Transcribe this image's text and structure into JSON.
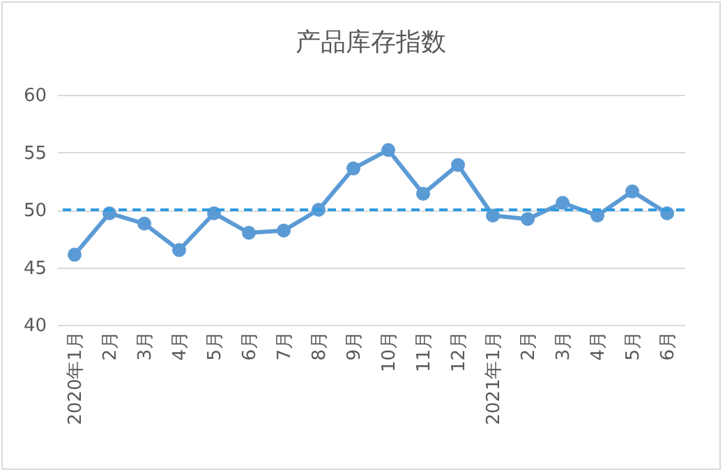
{
  "chart_data": {
    "type": "line",
    "title": "产品库存指数",
    "categories": [
      "2020年1月",
      "2月",
      "3月",
      "4月",
      "5月",
      "6月",
      "7月",
      "8月",
      "9月",
      "10月",
      "11月",
      "12月",
      "2021年1月",
      "2月",
      "3月",
      "4月",
      "5月",
      "6月"
    ],
    "series": [
      {
        "color": "#5b9bd5",
        "values": [
          46.1,
          49.7,
          48.8,
          46.5,
          49.7,
          48.0,
          48.2,
          50.0,
          53.6,
          55.2,
          51.4,
          53.9,
          49.5,
          49.2,
          50.6,
          49.5,
          51.6,
          49.7
        ]
      }
    ],
    "ylim": [
      40,
      60
    ],
    "yticks": [
      40,
      45,
      50,
      55,
      60
    ],
    "grid": "y",
    "marker": "circle",
    "line_style": "solid",
    "ref_lines": [
      {
        "axis": "y",
        "value": 50,
        "color": "#2e9be0",
        "line_style": "dashed"
      }
    ]
  }
}
